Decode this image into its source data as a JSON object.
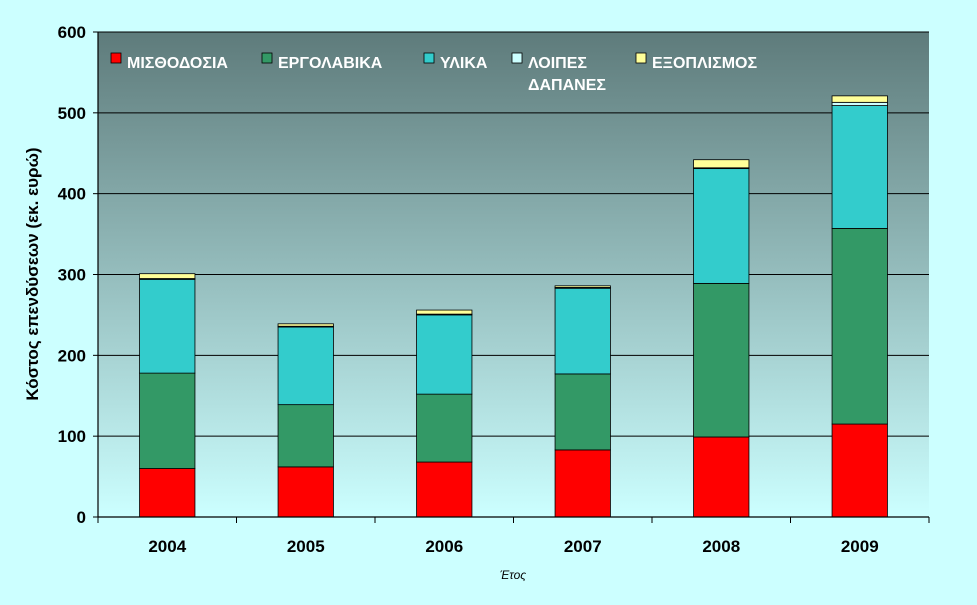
{
  "chart_data": {
    "type": "bar",
    "stacked": true,
    "categories": [
      "2004",
      "2005",
      "2006",
      "2007",
      "2008",
      "2009"
    ],
    "series": [
      {
        "name": "ΜΙΣΘΟΔΟΣΙΑ",
        "color": "#ff0000",
        "values": [
          60,
          62,
          68,
          83,
          99,
          115
        ]
      },
      {
        "name": "ΕΡΓΟΛΑΒΙΚΑ",
        "color": "#339966",
        "values": [
          118,
          77,
          84,
          94,
          190,
          242
        ]
      },
      {
        "name": "ΥΛΙΚΑ",
        "color": "#33cccc",
        "values": [
          116,
          96,
          98,
          106,
          142,
          152
        ]
      },
      {
        "name": "ΛΟΙΠΕΣ ΔΑΠΑΝΕΣ",
        "color": "#ccffff",
        "values": [
          1,
          1,
          1,
          1,
          1,
          4
        ]
      },
      {
        "name": "ΕΞΟΠΛΙΣΜΟΣ",
        "color": "#ffff99",
        "values": [
          6,
          3,
          5,
          2,
          10,
          8
        ]
      }
    ],
    "xlabel": "Έτος",
    "ylabel": "Κόστος επενδύσεων (εκ. ευρώ)",
    "ylim": [
      0,
      600
    ],
    "yticks": [
      "0",
      "100",
      "200",
      "300",
      "400",
      "500",
      "600"
    ],
    "grid": true,
    "legend_position": "top",
    "background_gradient": [
      "#5e7b7b",
      "#ccffff"
    ]
  }
}
